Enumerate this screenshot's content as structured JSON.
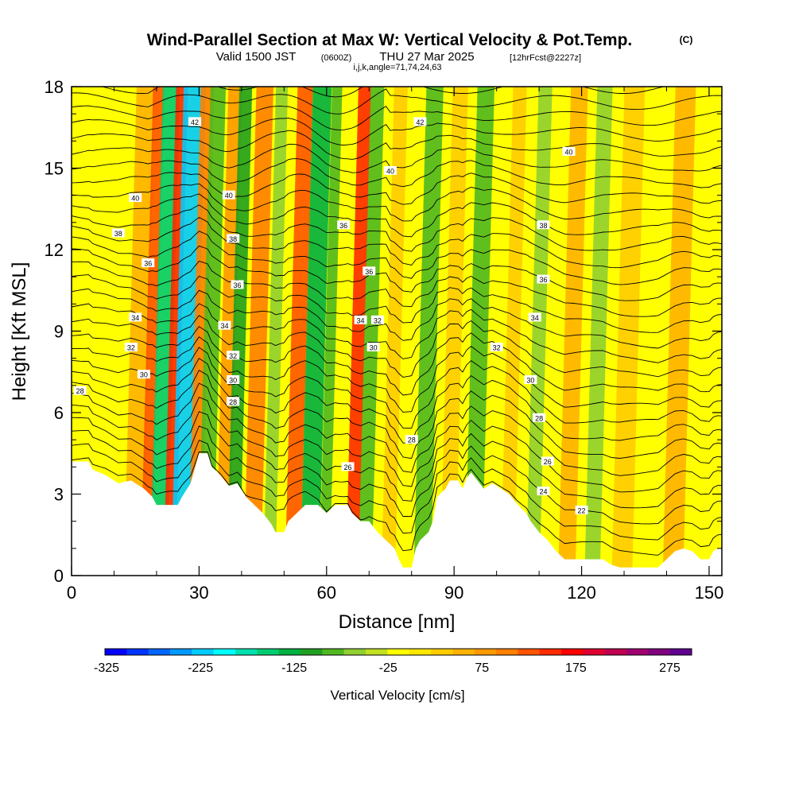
{
  "header": {
    "title": "Wind-Parallel Section at Max W: Vertical Velocity & Pot.Temp.",
    "title_mark": "(C)",
    "valid_prefix": "Valid 1500 JST",
    "valid_utc": "(0600Z)",
    "valid_date": "THU 27 Mar 2025",
    "forecast": "[12hrFcst@2227z]",
    "grid_info": "i,j,k,angle=71,74,24,63"
  },
  "colors": {
    "scale": [
      "#0000ff",
      "#0033ff",
      "#0066ff",
      "#0099ff",
      "#00ccff",
      "#00ffff",
      "#00e0b0",
      "#00cc70",
      "#00b040",
      "#20a020",
      "#50b820",
      "#90d030",
      "#c0e020",
      "#ffff00",
      "#ffe600",
      "#ffcc00",
      "#ffb300",
      "#ff9900",
      "#ff7f00",
      "#ff5500",
      "#ff2a00",
      "#ff0000",
      "#e00030",
      "#c00050",
      "#a00070",
      "#800080",
      "#600090"
    ],
    "background_field": "#ffff00",
    "terrain": "#ffffff",
    "contour": "#000000"
  },
  "chart_data": {
    "type": "heatmap",
    "title": "Wind-Parallel Section at Max W: Vertical Velocity & Pot.Temp.",
    "xlabel": "Distance [nm]",
    "ylabel": "Height [Kft MSL]",
    "xlim": [
      0,
      153
    ],
    "ylim": [
      0,
      18
    ],
    "x_ticks": [
      0,
      30,
      60,
      90,
      120,
      150
    ],
    "y_ticks": [
      0,
      3,
      6,
      9,
      12,
      15,
      18
    ],
    "colorbar": {
      "label": "Vertical Velocity [cm/s]",
      "min": -325,
      "max": 300,
      "step": 25,
      "tick_values": [
        -325,
        -225,
        -125,
        -25,
        75,
        175,
        275
      ],
      "tick_labels": [
        "-325",
        "-225",
        "-125",
        "-25",
        "75",
        "175",
        "275"
      ]
    },
    "vertical_velocity_bands": [
      {
        "x": 16,
        "w": 2.2,
        "value": 75
      },
      {
        "x": 19,
        "w": 1.3,
        "value": 150
      },
      {
        "x": 22,
        "w": 2.0,
        "value": -150
      },
      {
        "x": 24.5,
        "w": 1.4,
        "value": 175
      },
      {
        "x": 27.5,
        "w": 2.6,
        "value": -225
      },
      {
        "x": 30.5,
        "w": 1.6,
        "value": 125
      },
      {
        "x": 33,
        "w": 1.8,
        "value": -75
      },
      {
        "x": 37,
        "w": 1.6,
        "value": 100
      },
      {
        "x": 39.5,
        "w": 1.5,
        "value": -100
      },
      {
        "x": 44,
        "w": 2.0,
        "value": 125
      },
      {
        "x": 48,
        "w": 1.4,
        "value": -50
      },
      {
        "x": 53.5,
        "w": 1.8,
        "value": 150
      },
      {
        "x": 57.5,
        "w": 2.2,
        "value": -125
      },
      {
        "x": 61,
        "w": 1.2,
        "value": -75
      },
      {
        "x": 67.5,
        "w": 1.5,
        "value": 175
      },
      {
        "x": 70.5,
        "w": 1.6,
        "value": -75
      },
      {
        "x": 76,
        "w": 1.6,
        "value": 50
      },
      {
        "x": 84,
        "w": 2.0,
        "value": -75
      },
      {
        "x": 90,
        "w": 1.8,
        "value": 50
      },
      {
        "x": 96,
        "w": 2.0,
        "value": -75
      },
      {
        "x": 104,
        "w": 1.6,
        "value": 50
      },
      {
        "x": 110,
        "w": 1.6,
        "value": -50
      },
      {
        "x": 118,
        "w": 2.0,
        "value": 75
      },
      {
        "x": 124,
        "w": 1.8,
        "value": -50
      },
      {
        "x": 131,
        "w": 2.4,
        "value": 50
      },
      {
        "x": 143,
        "w": 2.4,
        "value": 75
      }
    ],
    "terrain_height": [
      [
        0,
        4.2
      ],
      [
        4,
        4.2
      ],
      [
        5,
        3.9
      ],
      [
        8,
        3.7
      ],
      [
        11,
        3.4
      ],
      [
        14,
        3.5
      ],
      [
        17,
        3.2
      ],
      [
        19,
        2.9
      ],
      [
        20,
        2.6
      ],
      [
        25,
        2.6
      ],
      [
        26,
        2.9
      ],
      [
        28,
        3.4
      ],
      [
        30,
        4.5
      ],
      [
        32,
        4.5
      ],
      [
        33,
        4.0
      ],
      [
        35,
        3.7
      ],
      [
        37,
        3.3
      ],
      [
        39,
        3.4
      ],
      [
        41,
        2.9
      ],
      [
        43,
        2.6
      ],
      [
        45,
        2.3
      ],
      [
        47,
        1.9
      ],
      [
        48,
        1.6
      ],
      [
        50,
        1.6
      ],
      [
        51,
        2.0
      ],
      [
        53,
        2.3
      ],
      [
        55,
        2.6
      ],
      [
        58,
        2.6
      ],
      [
        60,
        2.3
      ],
      [
        62,
        2.6
      ],
      [
        65,
        2.6
      ],
      [
        66,
        2.3
      ],
      [
        68,
        2.0
      ],
      [
        70,
        2.0
      ],
      [
        72,
        1.6
      ],
      [
        74,
        1.3
      ],
      [
        76,
        1.0
      ],
      [
        77,
        0.6
      ],
      [
        78,
        0.3
      ],
      [
        80,
        0.3
      ],
      [
        81,
        1.0
      ],
      [
        82,
        1.3
      ],
      [
        84,
        1.6
      ],
      [
        85,
        2.0
      ],
      [
        86,
        2.9
      ],
      [
        88,
        3.2
      ],
      [
        89,
        3.5
      ],
      [
        91,
        3.5
      ],
      [
        92,
        3.2
      ],
      [
        93,
        3.6
      ],
      [
        94,
        3.8
      ],
      [
        95,
        3.6
      ],
      [
        97,
        3.2
      ],
      [
        99,
        3.4
      ],
      [
        101,
        3.2
      ],
      [
        103,
        3.0
      ],
      [
        105,
        2.6
      ],
      [
        107,
        2.3
      ],
      [
        108,
        2.0
      ],
      [
        110,
        1.6
      ],
      [
        112,
        1.3
      ],
      [
        114,
        0.9
      ],
      [
        116,
        0.6
      ],
      [
        118,
        0.6
      ],
      [
        121,
        0.6
      ],
      [
        125,
        0.6
      ],
      [
        127,
        0.4
      ],
      [
        129,
        0.3
      ],
      [
        138,
        0.3
      ],
      [
        140,
        0.6
      ],
      [
        142,
        0.9
      ],
      [
        144,
        1.0
      ],
      [
        146,
        0.9
      ],
      [
        148,
        0.6
      ],
      [
        150,
        0.6
      ],
      [
        151,
        0.9
      ],
      [
        152,
        1.0
      ],
      [
        153,
        1.0
      ]
    ],
    "theta_contours": {
      "units": "C",
      "labels": [
        {
          "text": "28",
          "x": 2,
          "y": 6.8
        },
        {
          "text": "30",
          "x": 17,
          "y": 7.4
        },
        {
          "text": "32",
          "x": 14,
          "y": 8.4
        },
        {
          "text": "34",
          "x": 15,
          "y": 9.5
        },
        {
          "text": "36",
          "x": 18,
          "y": 11.5
        },
        {
          "text": "38",
          "x": 11,
          "y": 12.6
        },
        {
          "text": "40",
          "x": 15,
          "y": 13.9
        },
        {
          "text": "42",
          "x": 29,
          "y": 16.7
        },
        {
          "text": "40",
          "x": 37,
          "y": 14.0
        },
        {
          "text": "38",
          "x": 38,
          "y": 12.4
        },
        {
          "text": "36",
          "x": 39,
          "y": 10.7
        },
        {
          "text": "34",
          "x": 36,
          "y": 9.2
        },
        {
          "text": "32",
          "x": 38,
          "y": 8.1
        },
        {
          "text": "30",
          "x": 38,
          "y": 7.2
        },
        {
          "text": "28",
          "x": 38,
          "y": 6.4
        },
        {
          "text": "36",
          "x": 64,
          "y": 12.9
        },
        {
          "text": "36",
          "x": 70,
          "y": 11.2
        },
        {
          "text": "34",
          "x": 68,
          "y": 9.4
        },
        {
          "text": "32",
          "x": 72,
          "y": 9.4
        },
        {
          "text": "30",
          "x": 71,
          "y": 8.4
        },
        {
          "text": "28",
          "x": 80,
          "y": 5.0
        },
        {
          "text": "26",
          "x": 65,
          "y": 4.0
        },
        {
          "text": "40",
          "x": 75,
          "y": 14.9
        },
        {
          "text": "42",
          "x": 82,
          "y": 16.7
        },
        {
          "text": "40",
          "x": 117,
          "y": 15.6
        },
        {
          "text": "38",
          "x": 111,
          "y": 12.9
        },
        {
          "text": "36",
          "x": 111,
          "y": 10.9
        },
        {
          "text": "34",
          "x": 109,
          "y": 9.5
        },
        {
          "text": "32",
          "x": 100,
          "y": 8.4
        },
        {
          "text": "30",
          "x": 108,
          "y": 7.2
        },
        {
          "text": "28",
          "x": 110,
          "y": 5.8
        },
        {
          "text": "26",
          "x": 112,
          "y": 4.2
        },
        {
          "text": "24",
          "x": 111,
          "y": 3.1
        },
        {
          "text": "22",
          "x": 120,
          "y": 2.4
        }
      ]
    }
  }
}
